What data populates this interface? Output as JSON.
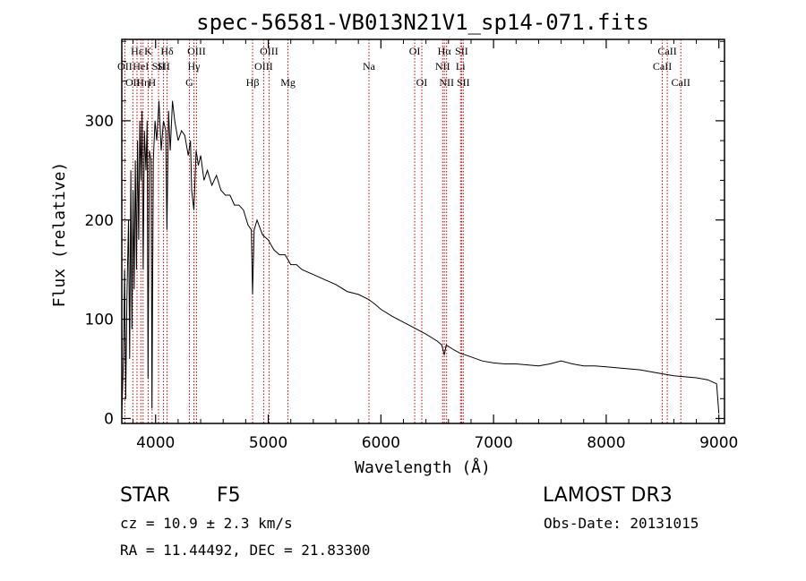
{
  "chart_data": {
    "type": "line",
    "title": "spec-56581-VB013N21V1_sp14-071.fits",
    "xlabel": "Wavelength (Å)",
    "ylabel": "Flux (relative)",
    "xlim": [
      3700,
      9050
    ],
    "ylim": [
      -5,
      382
    ],
    "xticks": [
      4000,
      5000,
      6000,
      7000,
      8000,
      9000
    ],
    "yticks": [
      0,
      100,
      200,
      300
    ],
    "series": [
      {
        "name": "flux",
        "points": [
          [
            3700,
            5
          ],
          [
            3715,
            60
          ],
          [
            3725,
            150
          ],
          [
            3735,
            20
          ],
          [
            3745,
            120
          ],
          [
            3760,
            200
          ],
          [
            3770,
            60
          ],
          [
            3780,
            250
          ],
          [
            3790,
            90
          ],
          [
            3800,
            230
          ],
          [
            3810,
            130
          ],
          [
            3820,
            260
          ],
          [
            3830,
            150
          ],
          [
            3840,
            280
          ],
          [
            3850,
            180
          ],
          [
            3860,
            300
          ],
          [
            3870,
            240
          ],
          [
            3880,
            310
          ],
          [
            3890,
            150
          ],
          [
            3900,
            290
          ],
          [
            3915,
            250
          ],
          [
            3925,
            300
          ],
          [
            3933,
            40
          ],
          [
            3945,
            270
          ],
          [
            3960,
            260
          ],
          [
            3968,
            10
          ],
          [
            3980,
            260
          ],
          [
            3995,
            300
          ],
          [
            4010,
            280
          ],
          [
            4030,
            320
          ],
          [
            4050,
            270
          ],
          [
            4070,
            300
          ],
          [
            4090,
            290
          ],
          [
            4101,
            190
          ],
          [
            4115,
            310
          ],
          [
            4130,
            270
          ],
          [
            4150,
            320
          ],
          [
            4170,
            300
          ],
          [
            4200,
            280
          ],
          [
            4230,
            290
          ],
          [
            4260,
            285
          ],
          [
            4290,
            265
          ],
          [
            4310,
            280
          ],
          [
            4320,
            230
          ],
          [
            4340,
            210
          ],
          [
            4360,
            270
          ],
          [
            4380,
            255
          ],
          [
            4400,
            265
          ],
          [
            4430,
            240
          ],
          [
            4460,
            250
          ],
          [
            4500,
            235
          ],
          [
            4540,
            245
          ],
          [
            4580,
            230
          ],
          [
            4620,
            225
          ],
          [
            4660,
            225
          ],
          [
            4700,
            215
          ],
          [
            4740,
            215
          ],
          [
            4780,
            210
          ],
          [
            4820,
            195
          ],
          [
            4850,
            190
          ],
          [
            4861,
            125
          ],
          [
            4875,
            190
          ],
          [
            4900,
            200
          ],
          [
            4950,
            185
          ],
          [
            5000,
            180
          ],
          [
            5050,
            170
          ],
          [
            5100,
            165
          ],
          [
            5150,
            165
          ],
          [
            5200,
            155
          ],
          [
            5250,
            155
          ],
          [
            5300,
            150
          ],
          [
            5400,
            145
          ],
          [
            5500,
            140
          ],
          [
            5600,
            135
          ],
          [
            5700,
            128
          ],
          [
            5800,
            125
          ],
          [
            5890,
            120
          ],
          [
            5950,
            115
          ],
          [
            6000,
            110
          ],
          [
            6100,
            103
          ],
          [
            6200,
            97
          ],
          [
            6300,
            91
          ],
          [
            6400,
            85
          ],
          [
            6500,
            78
          ],
          [
            6540,
            74
          ],
          [
            6563,
            64
          ],
          [
            6580,
            74
          ],
          [
            6650,
            69
          ],
          [
            6700,
            66
          ],
          [
            6800,
            62
          ],
          [
            6900,
            58
          ],
          [
            7000,
            56
          ],
          [
            7100,
            55
          ],
          [
            7200,
            55
          ],
          [
            7300,
            54
          ],
          [
            7400,
            53
          ],
          [
            7500,
            55
          ],
          [
            7600,
            58
          ],
          [
            7700,
            55
          ],
          [
            7800,
            53
          ],
          [
            7900,
            53
          ],
          [
            8000,
            52
          ],
          [
            8100,
            51
          ],
          [
            8200,
            50
          ],
          [
            8300,
            49
          ],
          [
            8400,
            47
          ],
          [
            8500,
            45
          ],
          [
            8600,
            43
          ],
          [
            8700,
            42
          ],
          [
            8800,
            41
          ],
          [
            8900,
            39
          ],
          [
            8980,
            35
          ],
          [
            9000,
            5
          ]
        ]
      }
    ],
    "line_markers": [
      {
        "wavelength": 3727,
        "label": "OII",
        "row": 2
      },
      {
        "wavelength": 3798,
        "label": "OII",
        "row": 3
      },
      {
        "wavelength": 3835,
        "label": "Hε",
        "row": 1
      },
      {
        "wavelength": 3869,
        "label": "HeI",
        "row": 2
      },
      {
        "wavelength": 3889,
        "label": "Hη",
        "row": 3
      },
      {
        "wavelength": 3934,
        "label": "K",
        "row": 1
      },
      {
        "wavelength": 3969,
        "label": "H",
        "row": 3
      },
      {
        "wavelength": 4026,
        "label": "SII",
        "row": 2
      },
      {
        "wavelength": 4102,
        "label": "Hδ",
        "row": 1
      },
      {
        "wavelength": 4070,
        "label": "SII",
        "row": 2
      },
      {
        "wavelength": 4300,
        "label": "G",
        "row": 3
      },
      {
        "wavelength": 4340,
        "label": "Hγ",
        "row": 2
      },
      {
        "wavelength": 4363,
        "label": "OIII",
        "row": 1
      },
      {
        "wavelength": 4861,
        "label": "Hβ",
        "row": 3
      },
      {
        "wavelength": 4959,
        "label": "OIII",
        "row": 2
      },
      {
        "wavelength": 5007,
        "label": "OIII",
        "row": 1
      },
      {
        "wavelength": 5175,
        "label": "Mg",
        "row": 3
      },
      {
        "wavelength": 5894,
        "label": "Na",
        "row": 2
      },
      {
        "wavelength": 6300,
        "label": "OI",
        "row": 1
      },
      {
        "wavelength": 6363,
        "label": "OI",
        "row": 3
      },
      {
        "wavelength": 6548,
        "label": "NII",
        "row": 2
      },
      {
        "wavelength": 6563,
        "label": "Hα",
        "row": 1
      },
      {
        "wavelength": 6583,
        "label": "NII",
        "row": 3
      },
      {
        "wavelength": 6707,
        "label": "Li",
        "row": 2
      },
      {
        "wavelength": 6716,
        "label": "SII",
        "row": 1
      },
      {
        "wavelength": 6731,
        "label": "SII",
        "row": 3
      },
      {
        "wavelength": 8498,
        "label": "CaII",
        "row": 2
      },
      {
        "wavelength": 8542,
        "label": "CaII",
        "row": 1
      },
      {
        "wavelength": 8662,
        "label": "CaII",
        "row": 3
      }
    ]
  },
  "info": {
    "class": "STAR",
    "subclass": "F5",
    "survey": "LAMOST DR3",
    "redshift": "cz = 10.9 ± 2.3 km/s",
    "obs_date": "Obs-Date: 20131015",
    "coords": "RA =  11.44492, DEC =  21.83300"
  },
  "colors": {
    "axis": "#000000",
    "spectrum": "#000000",
    "marker": "#cc0000"
  }
}
